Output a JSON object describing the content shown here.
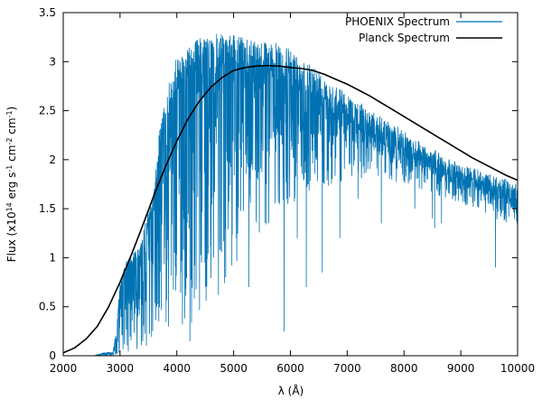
{
  "chart_data": {
    "type": "line",
    "title": "",
    "xlabel": "λ (Å)",
    "ylabel": {
      "prefix": "Flux (x10",
      "exp1": "14",
      "mid1": " erg s",
      "exp2": "-1",
      "mid2": " cm",
      "exp3": "-2",
      "mid3": " cm",
      "exp4": "-1",
      "suffix": ")"
    },
    "xlim": [
      2000,
      10000
    ],
    "ylim": [
      0,
      3.5
    ],
    "xticks": [
      2000,
      3000,
      4000,
      5000,
      6000,
      7000,
      8000,
      9000,
      10000
    ],
    "yticks": [
      0,
      0.5,
      1,
      1.5,
      2,
      2.5,
      3,
      3.5
    ],
    "ytick_labels": [
      "0",
      "0.5",
      "1",
      "1.5",
      "2",
      "2.5",
      "3",
      "3.5"
    ],
    "grid": false,
    "legend_position": "top-right",
    "series": [
      {
        "name": "PHOENIX Spectrum",
        "color": "#0072b2",
        "style": "dense absorption-line spectrum",
        "x_range": [
          2550,
          10000
        ],
        "continuum": [
          [
            2550,
            0.0
          ],
          [
            2620,
            0.02
          ],
          [
            2700,
            0.03
          ],
          [
            2880,
            0.05
          ],
          [
            2950,
            0.35
          ],
          [
            3000,
            0.75
          ],
          [
            3100,
            0.95
          ],
          [
            3200,
            1.05
          ],
          [
            3300,
            1.1
          ],
          [
            3400,
            1.25
          ],
          [
            3500,
            1.5
          ],
          [
            3600,
            1.7
          ],
          [
            3700,
            2.35
          ],
          [
            3800,
            2.6
          ],
          [
            3900,
            2.9
          ],
          [
            4000,
            3.05
          ],
          [
            4200,
            3.15
          ],
          [
            4400,
            3.25
          ],
          [
            4600,
            3.3
          ],
          [
            4800,
            3.28
          ],
          [
            5000,
            3.27
          ],
          [
            5200,
            3.26
          ],
          [
            5400,
            3.25
          ],
          [
            5600,
            3.22
          ],
          [
            5800,
            3.18
          ],
          [
            6000,
            3.13
          ],
          [
            6200,
            3.05
          ],
          [
            6400,
            2.98
          ],
          [
            6600,
            2.88
          ],
          [
            6800,
            2.78
          ],
          [
            7000,
            2.68
          ],
          [
            7200,
            2.6
          ],
          [
            7400,
            2.52
          ],
          [
            7600,
            2.44
          ],
          [
            7800,
            2.37
          ],
          [
            8000,
            2.3
          ],
          [
            8200,
            2.23
          ],
          [
            8400,
            2.15
          ],
          [
            8600,
            2.08
          ],
          [
            8800,
            2.01
          ],
          [
            9000,
            1.96
          ],
          [
            9200,
            1.92
          ],
          [
            9400,
            1.88
          ],
          [
            9600,
            1.84
          ],
          [
            9800,
            1.8
          ],
          [
            10000,
            1.75
          ]
        ],
        "absorption_floor": [
          [
            2950,
            0.0
          ],
          [
            3500,
            0.1
          ],
          [
            4000,
            0.2
          ],
          [
            4500,
            0.45
          ],
          [
            5000,
            0.8
          ],
          [
            5500,
            1.2
          ],
          [
            6000,
            1.55
          ],
          [
            6500,
            1.7
          ],
          [
            7000,
            1.8
          ],
          [
            8000,
            1.75
          ],
          [
            9000,
            1.55
          ],
          [
            10000,
            1.3
          ]
        ],
        "deep_lines": [
          [
            4230,
            0.15
          ],
          [
            4860,
            0.9
          ],
          [
            5270,
            0.7
          ],
          [
            5890,
            0.25
          ],
          [
            6120,
            1.2
          ],
          [
            6280,
            0.7
          ],
          [
            6560,
            0.85
          ],
          [
            6870,
            1.2
          ],
          [
            7190,
            1.6
          ],
          [
            7600,
            1.35
          ],
          [
            8190,
            1.5
          ],
          [
            8500,
            1.4
          ],
          [
            8540,
            1.3
          ],
          [
            8660,
            1.35
          ],
          [
            9610,
            0.9
          ]
        ]
      },
      {
        "name": "Planck Spectrum",
        "color": "#000000",
        "style": "smooth blackbody curve",
        "points": [
          [
            2000,
            0.03
          ],
          [
            2200,
            0.08
          ],
          [
            2400,
            0.17
          ],
          [
            2600,
            0.3
          ],
          [
            2800,
            0.5
          ],
          [
            3000,
            0.75
          ],
          [
            3200,
            1.03
          ],
          [
            3400,
            1.33
          ],
          [
            3600,
            1.64
          ],
          [
            3800,
            1.93
          ],
          [
            4000,
            2.19
          ],
          [
            4200,
            2.42
          ],
          [
            4400,
            2.6
          ],
          [
            4600,
            2.74
          ],
          [
            4800,
            2.84
          ],
          [
            5000,
            2.91
          ],
          [
            5200,
            2.94
          ],
          [
            5400,
            2.955
          ],
          [
            5600,
            2.96
          ],
          [
            5800,
            2.955
          ],
          [
            6000,
            2.94
          ],
          [
            6200,
            2.93
          ],
          [
            6400,
            2.91
          ],
          [
            6600,
            2.87
          ],
          [
            6800,
            2.82
          ],
          [
            7000,
            2.77
          ],
          [
            7200,
            2.71
          ],
          [
            7400,
            2.65
          ],
          [
            7600,
            2.58
          ],
          [
            7800,
            2.51
          ],
          [
            8000,
            2.44
          ],
          [
            8200,
            2.37
          ],
          [
            8400,
            2.3
          ],
          [
            8600,
            2.23
          ],
          [
            8800,
            2.16
          ],
          [
            9000,
            2.09
          ],
          [
            9200,
            2.02
          ],
          [
            9400,
            1.96
          ],
          [
            9600,
            1.9
          ],
          [
            9800,
            1.84
          ],
          [
            10000,
            1.79
          ]
        ]
      }
    ]
  }
}
